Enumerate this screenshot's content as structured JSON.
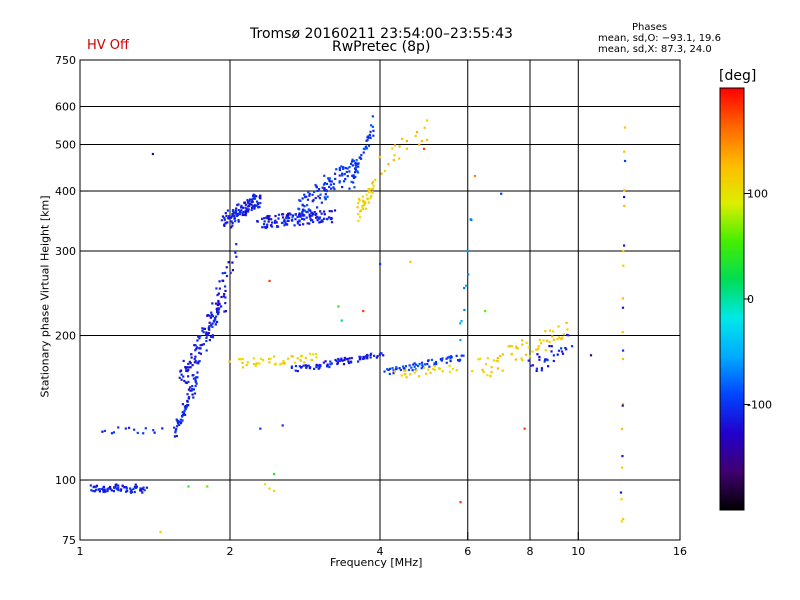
{
  "status": "HV Off",
  "title": {
    "line1": "Tromsø 20160211 23:54:00–23:55:43",
    "line2": "RwPretec (8p)"
  },
  "info": {
    "heading": "Phases",
    "line_o": "mean, sd,O: −93.1, 19.6",
    "line_x": "mean, sd,X:  87.3, 24.0"
  },
  "axes": {
    "xlabel": "Frequency [MHz]",
    "ylabel": "Stationary phase Virtual Height [km]"
  },
  "colorbar": {
    "label": "[deg]",
    "ticks": [
      100,
      0,
      -100
    ],
    "range": [
      -200,
      200
    ],
    "stops": [
      "#000000",
      "#400070",
      "#2200cc",
      "#0044ff",
      "#00aaff",
      "#00e8e8",
      "#00dd55",
      "#44ee00",
      "#ddee00",
      "#ffbb00",
      "#ff6600",
      "#ff0000"
    ]
  },
  "chart_data": {
    "type": "scatter",
    "xscale": "log",
    "yscale": "log",
    "xlim": [
      1,
      16
    ],
    "ylim": [
      75,
      750
    ],
    "xticks": [
      1,
      2,
      4,
      6,
      8,
      10,
      16
    ],
    "yticks": [
      75,
      100,
      200,
      300,
      400,
      500,
      600,
      750
    ],
    "xgrid": [
      2,
      4,
      6,
      8,
      10
    ],
    "ygrid": [
      100,
      200,
      300,
      400,
      500,
      600
    ],
    "color_variable": "phase [deg]",
    "traces": [
      {
        "x": [
          1.05,
          1.35
        ],
        "y": [
          96,
          96
        ],
        "phase": -110,
        "n": 70,
        "jx": 0.01,
        "jy": 0.02
      },
      {
        "x": [
          1.1,
          1.45
        ],
        "y": [
          127,
          127
        ],
        "phase": -105,
        "n": 14,
        "jx": 0.01,
        "jy": 0.015
      },
      {
        "x": [
          1.55,
          1.72
        ],
        "y": [
          125,
          165
        ],
        "phase": -108,
        "n": 60,
        "jx": 0.01,
        "jy": 0.04
      },
      {
        "x": [
          1.6,
          1.95
        ],
        "y": [
          160,
          240
        ],
        "phase": -112,
        "n": 110,
        "jx": 0.02,
        "jy": 0.05
      },
      {
        "x": [
          1.8,
          2.05
        ],
        "y": [
          210,
          300
        ],
        "phase": -115,
        "n": 30,
        "jx": 0.015,
        "jy": 0.05
      },
      {
        "x": [
          1.95,
          2.3
        ],
        "y": [
          345,
          385
        ],
        "phase": -110,
        "n": 110,
        "jx": 0.015,
        "jy": 0.04
      },
      {
        "x": [
          2.3,
          3.2
        ],
        "y": [
          345,
          355
        ],
        "phase": -112,
        "n": 130,
        "jx": 0.02,
        "jy": 0.03
      },
      {
        "x": [
          2.7,
          3.6
        ],
        "y": [
          360,
          460
        ],
        "phase": -100,
        "n": 110,
        "jx": 0.02,
        "jy": 0.05
      },
      {
        "x": [
          3.5,
          3.9
        ],
        "y": [
          410,
          560
        ],
        "phase": -95,
        "n": 40,
        "jx": 0.01,
        "jy": 0.04
      },
      {
        "x": [
          3.6,
          3.9
        ],
        "y": [
          360,
          410
        ],
        "phase": 110,
        "n": 40,
        "jx": 0.01,
        "jy": 0.04
      },
      {
        "x": [
          4.0,
          5.0
        ],
        "y": [
          450,
          540
        ],
        "phase": 120,
        "n": 20,
        "jx": 0.02,
        "jy": 0.05
      },
      {
        "x": [
          2.05,
          3.0
        ],
        "y": [
          175,
          180
        ],
        "phase": 110,
        "n": 45,
        "jx": 0.03,
        "jy": 0.02
      },
      {
        "x": [
          2.7,
          4.0
        ],
        "y": [
          170,
          182
        ],
        "phase": -112,
        "n": 80,
        "jx": 0.02,
        "jy": 0.015
      },
      {
        "x": [
          4.1,
          5.8
        ],
        "y": [
          168,
          180
        ],
        "phase": -95,
        "n": 60,
        "jx": 0.02,
        "jy": 0.015
      },
      {
        "x": [
          4.3,
          5.6
        ],
        "y": [
          165,
          172
        ],
        "phase": 110,
        "n": 25,
        "jx": 0.03,
        "jy": 0.02
      },
      {
        "x": [
          6.3,
          9.5
        ],
        "y": [
          170,
          205
        ],
        "phase": 115,
        "n": 60,
        "jx": 0.03,
        "jy": 0.05
      },
      {
        "x": [
          8.0,
          9.6
        ],
        "y": [
          170,
          195
        ],
        "phase": -110,
        "n": 30,
        "jx": 0.02,
        "jy": 0.04
      },
      {
        "x": [
          12.2,
          12.4
        ],
        "y": [
          82,
          560
        ],
        "phase": 115,
        "n": 14,
        "jx": 0.003,
        "jy": 0.05
      },
      {
        "x": [
          12.2,
          12.4
        ],
        "y": [
          90,
          480
        ],
        "phase": -110,
        "n": 8,
        "jx": 0.003,
        "jy": 0.05
      },
      {
        "x": [
          5.8,
          6.1
        ],
        "y": [
          200,
          350
        ],
        "phase": -60,
        "n": 10,
        "jx": 0.01,
        "jy": 0.08
      }
    ],
    "outliers": [
      {
        "x": 1.4,
        "y": 478,
        "phase": -140
      },
      {
        "x": 2.4,
        "y": 260,
        "phase": 180
      },
      {
        "x": 3.7,
        "y": 225,
        "phase": 180
      },
      {
        "x": 4.9,
        "y": 490,
        "phase": 180
      },
      {
        "x": 5.8,
        "y": 90,
        "phase": 180
      },
      {
        "x": 7.8,
        "y": 128,
        "phase": 180
      },
      {
        "x": 3.3,
        "y": 230,
        "phase": 40
      },
      {
        "x": 2.35,
        "y": 98,
        "phase": 100
      },
      {
        "x": 2.4,
        "y": 96,
        "phase": 110
      },
      {
        "x": 2.45,
        "y": 95,
        "phase": 105
      },
      {
        "x": 1.65,
        "y": 97,
        "phase": 40
      },
      {
        "x": 1.8,
        "y": 97,
        "phase": 60
      },
      {
        "x": 2.45,
        "y": 103,
        "phase": 30
      },
      {
        "x": 2.55,
        "y": 130,
        "phase": -100
      },
      {
        "x": 2.3,
        "y": 128,
        "phase": -95
      },
      {
        "x": 7.0,
        "y": 395,
        "phase": -100
      },
      {
        "x": 6.5,
        "y": 225,
        "phase": 60
      },
      {
        "x": 3.35,
        "y": 215,
        "phase": 10
      },
      {
        "x": 10.6,
        "y": 182,
        "phase": -150
      },
      {
        "x": 6.2,
        "y": 430,
        "phase": 150
      },
      {
        "x": 4.6,
        "y": 285,
        "phase": 120
      },
      {
        "x": 4.0,
        "y": 282,
        "phase": -100
      },
      {
        "x": 1.45,
        "y": 78,
        "phase": 110
      },
      {
        "x": 12.3,
        "y": 83,
        "phase": 120
      }
    ]
  }
}
